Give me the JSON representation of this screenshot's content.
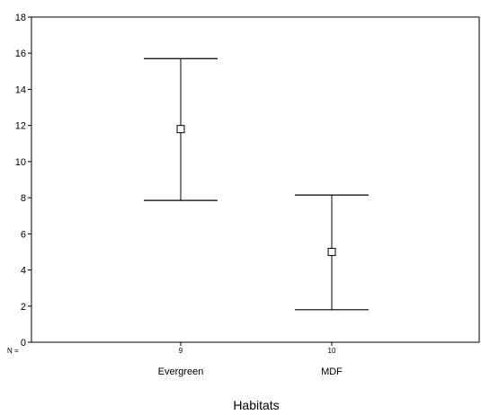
{
  "chart_data": {
    "type": "errorbar",
    "xlabel": "Habitats",
    "ylabel": "",
    "ylim": [
      0,
      18
    ],
    "yticks": [
      0,
      2,
      4,
      6,
      8,
      10,
      12,
      14,
      16,
      18
    ],
    "n_prefix": "N =",
    "categories": [
      "Evergreen",
      "MDF"
    ],
    "n": [
      "9",
      "10"
    ],
    "mean": [
      11.8,
      5.0
    ],
    "lower": [
      7.85,
      1.8
    ],
    "upper": [
      15.7,
      8.15
    ],
    "grid": false,
    "legend": "none"
  }
}
